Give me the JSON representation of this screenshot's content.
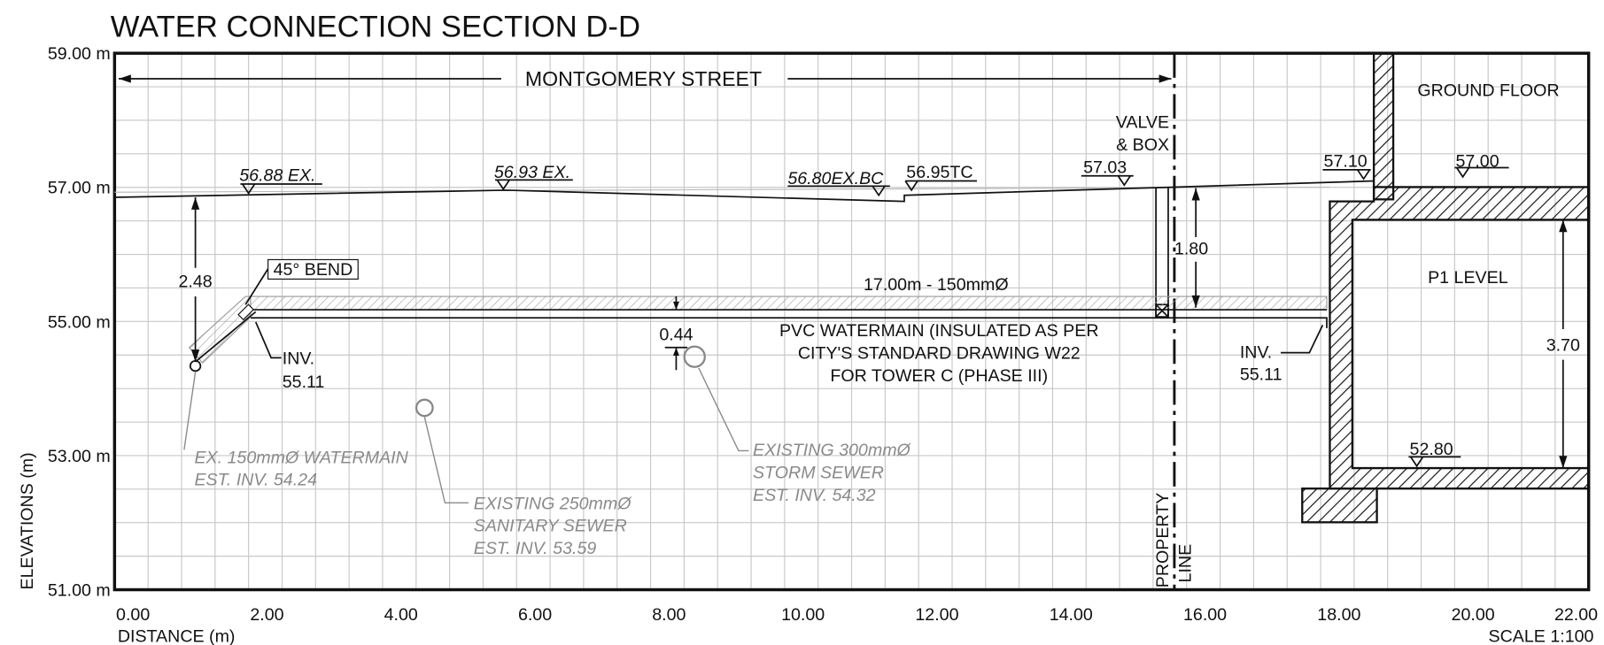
{
  "title": "WATER CONNECTION SECTION D-D",
  "axes": {
    "y_label": "ELEVATIONS (m)",
    "y_ticks": [
      "59.00 m",
      "57.00 m",
      "55.00 m",
      "53.00 m",
      "51.00 m"
    ],
    "x_label": "DISTANCE (m)",
    "x_ticks": [
      "0.00",
      "2.00",
      "4.00",
      "6.00",
      "8.00",
      "10.00",
      "12.00",
      "14.00",
      "16.00",
      "18.00",
      "20.00",
      "22.00"
    ],
    "scale": "SCALE 1:100"
  },
  "labels": {
    "street": "MONTGOMERY STREET",
    "valve": [
      "VALVE",
      "& BOX"
    ],
    "ground_floor": "GROUND FLOOR",
    "p1_level": "P1 LEVEL",
    "elevations": [
      "56.88 EX.",
      "56.93 EX.",
      "56.80EX.BC",
      "56.95TC",
      "57.03",
      "57.10",
      "57.00",
      "52.80"
    ],
    "dimensions": [
      "2.48",
      "1.80",
      "3.70",
      "0.44"
    ],
    "bend": "45° BEND",
    "pipe_size": "17.00m - 150mmØ",
    "pvc_note": [
      "PVC WATERMAIN (INSULATED AS PER",
      "CITY'S STANDARD DRAWING W22",
      "FOR TOWER C (PHASE III)"
    ],
    "inv_left": [
      "INV.",
      "55.11"
    ],
    "inv_right": [
      "INV.",
      "55.11"
    ],
    "ex_watermain": [
      "EX. 150mmØ WATERMAIN",
      "EST. INV. 54.24"
    ],
    "sanitary": [
      "EXISTING 250mmØ",
      "SANITARY SEWER",
      "EST. INV. 53.59"
    ],
    "storm": [
      "EXISTING 300mmØ",
      "STORM SEWER",
      "EST. INV. 54.32"
    ],
    "property_line": [
      "PROPERTY",
      "LINE"
    ]
  }
}
